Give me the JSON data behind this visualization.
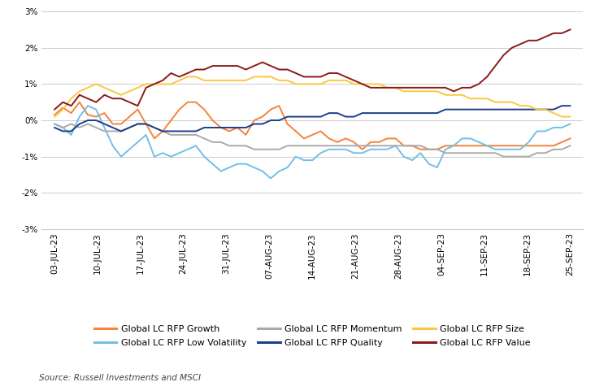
{
  "source": "Source: Russell Investments and MSCI",
  "x_labels": [
    "03-JUL-23",
    "10-JUL-23",
    "17-JUL-23",
    "24-JUL-23",
    "31-JUL-23",
    "07-AUG-23",
    "14-AUG-23",
    "21-AUG-23",
    "28-AUG-23",
    "04-SEP-23",
    "11-SEP-23",
    "18-SEP-23",
    "25-SEP-23"
  ],
  "ylim": [
    -0.03,
    0.03
  ],
  "yticks": [
    -0.03,
    -0.02,
    -0.01,
    0.0,
    0.01,
    0.02,
    0.03
  ],
  "n_points": 63,
  "series": {
    "Global LC RFP Growth": {
      "color": "#F4833B",
      "data": [
        0.0015,
        0.0035,
        0.002,
        0.005,
        0.0015,
        0.001,
        0.002,
        -0.001,
        -0.001,
        0.001,
        0.003,
        -0.001,
        -0.005,
        -0.003,
        0.0,
        0.003,
        0.005,
        0.005,
        0.003,
        0.0,
        -0.002,
        -0.003,
        -0.002,
        -0.004,
        0.0,
        0.001,
        0.003,
        0.004,
        -0.001,
        -0.003,
        -0.005,
        -0.004,
        -0.003,
        -0.005,
        -0.006,
        -0.005,
        -0.006,
        -0.008,
        -0.006,
        -0.006,
        -0.005,
        -0.005,
        -0.007,
        -0.007,
        -0.008,
        -0.008,
        -0.008,
        -0.007,
        -0.007,
        -0.007,
        -0.007,
        -0.007,
        -0.007,
        -0.007,
        -0.007,
        -0.007,
        -0.007,
        -0.007,
        -0.007,
        -0.007,
        -0.007,
        -0.006,
        -0.005
      ]
    },
    "Global LC RFP Low Volatility": {
      "color": "#72BFE8",
      "data": [
        -0.001,
        -0.002,
        -0.004,
        0.001,
        0.004,
        0.003,
        -0.002,
        -0.007,
        -0.01,
        -0.008,
        -0.006,
        -0.004,
        -0.01,
        -0.009,
        -0.01,
        -0.009,
        -0.008,
        -0.007,
        -0.01,
        -0.012,
        -0.014,
        -0.013,
        -0.012,
        -0.012,
        -0.013,
        -0.014,
        -0.016,
        -0.014,
        -0.013,
        -0.01,
        -0.011,
        -0.011,
        -0.009,
        -0.008,
        -0.008,
        -0.008,
        -0.009,
        -0.009,
        -0.008,
        -0.008,
        -0.008,
        -0.007,
        -0.01,
        -0.011,
        -0.009,
        -0.012,
        -0.013,
        -0.008,
        -0.007,
        -0.005,
        -0.005,
        -0.006,
        -0.007,
        -0.008,
        -0.008,
        -0.008,
        -0.008,
        -0.006,
        -0.003,
        -0.003,
        -0.002,
        -0.002,
        -0.001
      ]
    },
    "Global LC RFP Momentum": {
      "color": "#AAAAAA",
      "data": [
        -0.001,
        -0.002,
        -0.001,
        -0.002,
        -0.001,
        -0.002,
        -0.003,
        -0.003,
        -0.003,
        -0.002,
        -0.001,
        -0.001,
        -0.002,
        -0.003,
        -0.004,
        -0.004,
        -0.004,
        -0.004,
        -0.005,
        -0.006,
        -0.006,
        -0.007,
        -0.007,
        -0.007,
        -0.008,
        -0.008,
        -0.008,
        -0.008,
        -0.007,
        -0.007,
        -0.007,
        -0.007,
        -0.007,
        -0.007,
        -0.007,
        -0.007,
        -0.007,
        -0.007,
        -0.007,
        -0.007,
        -0.007,
        -0.007,
        -0.007,
        -0.007,
        -0.007,
        -0.008,
        -0.008,
        -0.009,
        -0.009,
        -0.009,
        -0.009,
        -0.009,
        -0.009,
        -0.009,
        -0.01,
        -0.01,
        -0.01,
        -0.01,
        -0.009,
        -0.009,
        -0.008,
        -0.008,
        -0.007
      ]
    },
    "Global LC RFP Quality": {
      "color": "#1B3F8B",
      "data": [
        -0.002,
        -0.003,
        -0.003,
        -0.001,
        0.0,
        0.0,
        -0.001,
        -0.002,
        -0.003,
        -0.002,
        -0.001,
        -0.001,
        -0.002,
        -0.003,
        -0.003,
        -0.003,
        -0.003,
        -0.003,
        -0.002,
        -0.002,
        -0.002,
        -0.002,
        -0.002,
        -0.002,
        -0.001,
        -0.001,
        0.0,
        0.0,
        0.001,
        0.001,
        0.001,
        0.001,
        0.001,
        0.002,
        0.002,
        0.001,
        0.001,
        0.002,
        0.002,
        0.002,
        0.002,
        0.002,
        0.002,
        0.002,
        0.002,
        0.002,
        0.002,
        0.003,
        0.003,
        0.003,
        0.003,
        0.003,
        0.003,
        0.003,
        0.003,
        0.003,
        0.003,
        0.003,
        0.003,
        0.003,
        0.003,
        0.004,
        0.004
      ]
    },
    "Global LC RFP Size": {
      "color": "#F9C840",
      "data": [
        0.001,
        0.003,
        0.006,
        0.008,
        0.009,
        0.01,
        0.009,
        0.008,
        0.007,
        0.008,
        0.009,
        0.01,
        0.01,
        0.01,
        0.01,
        0.011,
        0.012,
        0.012,
        0.011,
        0.011,
        0.011,
        0.011,
        0.011,
        0.011,
        0.012,
        0.012,
        0.012,
        0.011,
        0.011,
        0.01,
        0.01,
        0.01,
        0.01,
        0.011,
        0.011,
        0.011,
        0.01,
        0.01,
        0.01,
        0.01,
        0.009,
        0.009,
        0.008,
        0.008,
        0.008,
        0.008,
        0.008,
        0.007,
        0.007,
        0.007,
        0.006,
        0.006,
        0.006,
        0.005,
        0.005,
        0.005,
        0.004,
        0.004,
        0.003,
        0.003,
        0.002,
        0.001,
        0.001
      ]
    },
    "Global LC RFP Value": {
      "color": "#8B1A1A",
      "data": [
        0.003,
        0.005,
        0.004,
        0.007,
        0.006,
        0.005,
        0.007,
        0.006,
        0.006,
        0.005,
        0.004,
        0.009,
        0.01,
        0.011,
        0.013,
        0.012,
        0.013,
        0.014,
        0.014,
        0.015,
        0.015,
        0.015,
        0.015,
        0.014,
        0.015,
        0.016,
        0.015,
        0.014,
        0.014,
        0.013,
        0.012,
        0.012,
        0.012,
        0.013,
        0.013,
        0.012,
        0.011,
        0.01,
        0.009,
        0.009,
        0.009,
        0.009,
        0.009,
        0.009,
        0.009,
        0.009,
        0.009,
        0.009,
        0.008,
        0.009,
        0.009,
        0.01,
        0.012,
        0.015,
        0.018,
        0.02,
        0.021,
        0.022,
        0.022,
        0.023,
        0.024,
        0.024,
        0.025
      ]
    }
  },
  "legend_order": [
    "Global LC RFP Growth",
    "Global LC RFP Low Volatility",
    "Global LC RFP Momentum",
    "Global LC RFP Quality",
    "Global LC RFP Size",
    "Global LC RFP Value"
  ],
  "background_color": "#FFFFFF",
  "grid_color": "#CCCCCC",
  "axis_fontsize": 7.5,
  "legend_fontsize": 8
}
